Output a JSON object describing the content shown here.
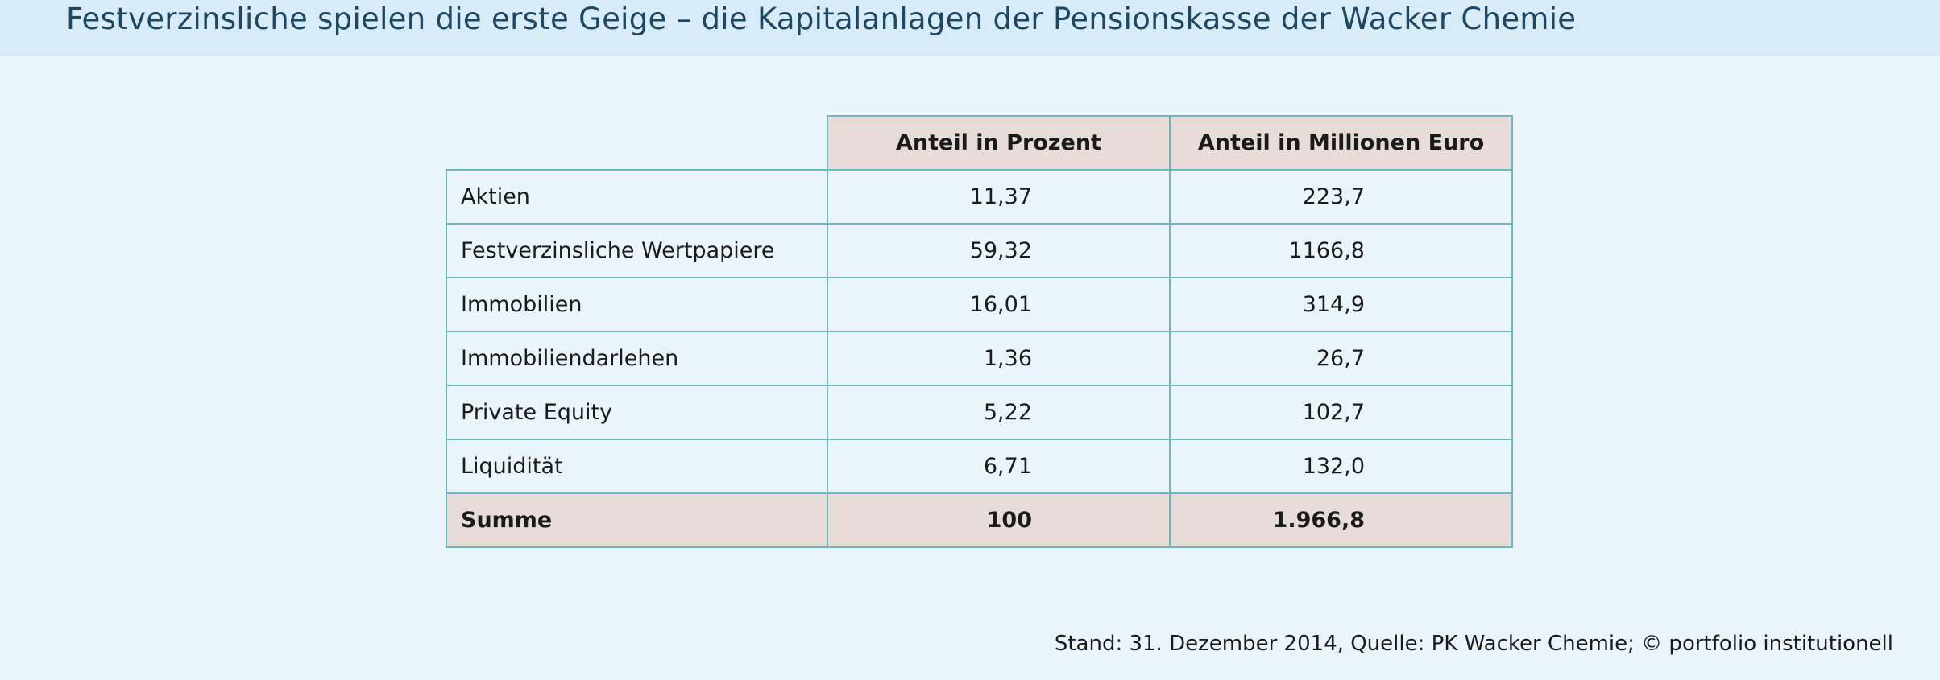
{
  "title": "Festverzinsliche spielen die erste Geige – die Kapitalanlagen der Pensionskasse der Wacker Chemie",
  "footer": "Stand: 31. Dezember 2014, Quelle: PK Wacker Chemie; © portfolio institutionell",
  "colors": {
    "background": "#e9f5fb",
    "title_bar": "#d7ecf7",
    "title_text": "#1d4763",
    "header_fill": "#e8dcd9",
    "grid": "#6bb8c2"
  },
  "chart_data": {
    "type": "table",
    "columns": [
      "",
      "Anteil in Prozent",
      "Anteil in Millionen Euro"
    ],
    "rows": [
      [
        "Aktien",
        "11,37",
        "223,7"
      ],
      [
        "Festverzinsliche Wertpapiere",
        "59,32",
        "1166,8"
      ],
      [
        "Immobilien",
        "16,01",
        "314,9"
      ],
      [
        "Immobiliendarlehen",
        "1,36",
        "26,7"
      ],
      [
        "Private Equity",
        "5,22",
        "102,7"
      ],
      [
        "Liquidität",
        "6,71",
        "132,0"
      ]
    ],
    "total": [
      "Summe",
      "100",
      "1.966,8"
    ]
  }
}
